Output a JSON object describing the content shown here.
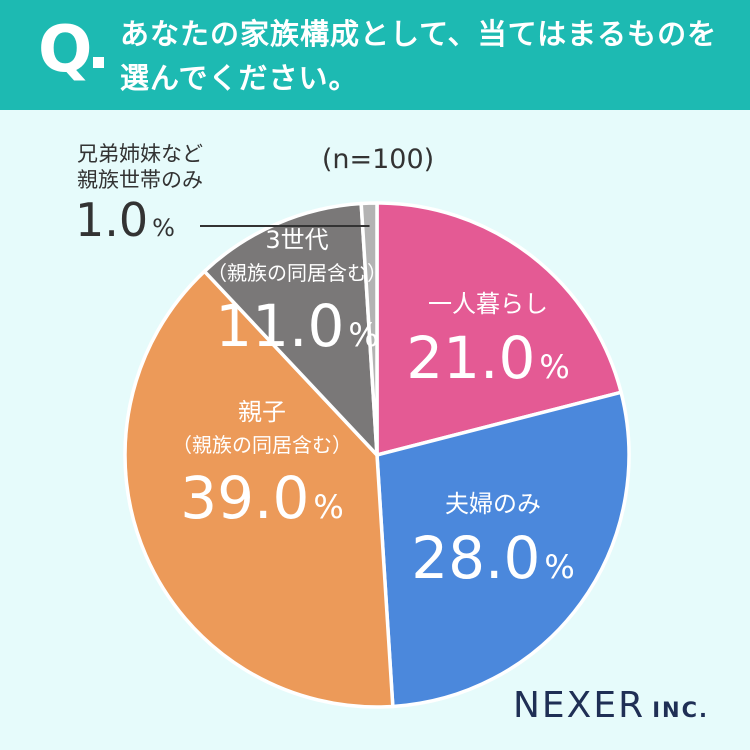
{
  "header": {
    "q_mark": "Q",
    "question": "あなたの家族構成として、当てはまるものを選んでください。"
  },
  "chart_data": {
    "type": "pie",
    "n_label": "(n=100)",
    "start": "top, clockwise",
    "slices": [
      {
        "label_lines": [
          "一人暮らし"
        ],
        "value": 21.0,
        "value_text": "21.0",
        "unit": "%",
        "color": "#e45a94"
      },
      {
        "label_lines": [
          "夫婦のみ"
        ],
        "value": 28.0,
        "value_text": "28.0",
        "unit": "%",
        "color": "#4b88dc"
      },
      {
        "label_lines": [
          "親子",
          "（親族の同居含む）"
        ],
        "value": 39.0,
        "value_text": "39.0",
        "unit": "%",
        "color": "#ec9a59"
      },
      {
        "label_lines": [
          "3世代",
          "（親族の同居含む）"
        ],
        "value": 11.0,
        "value_text": "11.0",
        "unit": "%",
        "color": "#7a7878"
      },
      {
        "label_lines": [
          "兄弟姉妹など",
          "親族世帯のみ"
        ],
        "value": 1.0,
        "value_text": "1.0",
        "unit": "%",
        "color": "#b3b3b3"
      }
    ]
  },
  "logo": {
    "main": "NEXER",
    "sub": "INC."
  }
}
